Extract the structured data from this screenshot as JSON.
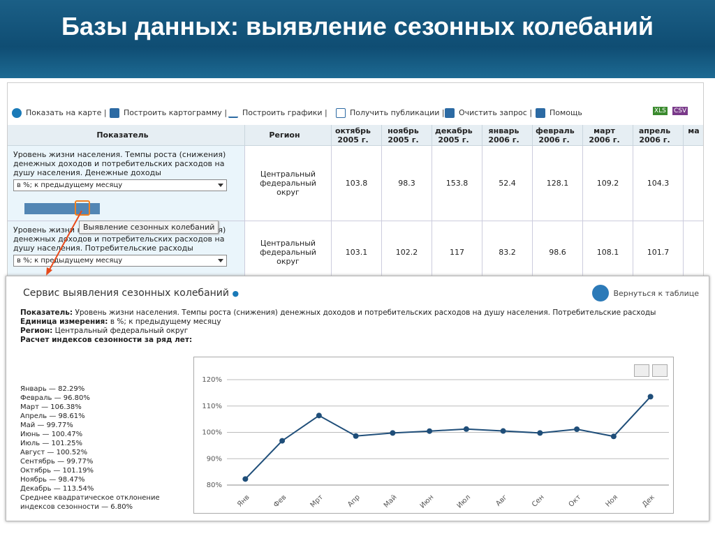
{
  "header": {
    "title": "Базы данных: выявление сезонных колебаний"
  },
  "toolbar": {
    "items": [
      "Показать на карте",
      "Построить картограмму",
      "Построить графики",
      "Получить публикации",
      "Очистить запрос",
      "Помощь"
    ],
    "exports": [
      "XLS",
      "CSV"
    ]
  },
  "table": {
    "headers": [
      "Показатель",
      "Регион",
      "октябрь 2005 г.",
      "ноябрь 2005 г.",
      "декабрь 2005 г.",
      "январь 2006 г.",
      "февраль 2006 г.",
      "март 2006 г.",
      "апрель 2006 г.",
      "ма"
    ],
    "rows": [
      {
        "indicator": "Уровень жизни населения. Темпы роста (снижения) денежных доходов и потребительских расходов на душу населения. Денежные доходы",
        "unit": "в %; к предыдущему месяцу",
        "region": "Центральный федеральный округ",
        "values": [
          103.8,
          98.3,
          153.8,
          52.4,
          128.1,
          109.2,
          104.3
        ]
      },
      {
        "indicator": "Уровень жизни населения. Темпы роста (снижения) денежных доходов и потребительских расходов на душу населения. Потребительские расходы",
        "unit": "в %; к предыдущему месяцу",
        "region": "Центральный федеральный округ",
        "values": [
          103.1,
          102.2,
          117,
          83.2,
          98.6,
          108.1,
          101.7
        ]
      }
    ]
  },
  "tooltip": "Выявление сезонных колебаний",
  "panel": {
    "title": "Сервис выявления сезонных колебаний",
    "back": "Вернуться к таблице",
    "info": [
      {
        "label": "Показатель:",
        "text": "Уровень жизни населения. Темпы роста (снижения) денежных доходов и потребительских расходов на душу населения. Потребительские расходы"
      },
      {
        "label": "Единица измерения:",
        "text": "в %; к предыдущему месяцу"
      },
      {
        "label": "Регион:",
        "text": "Центральный федеральный округ"
      },
      {
        "label": "Расчет индексов сезонности за ряд лет:",
        "text": null
      }
    ],
    "indices": [
      "Январь — 82.29%",
      "Февраль — 96.80%",
      "Март — 106.38%",
      "Апрель — 98.61%",
      "Май — 99.77%",
      "Июнь — 100.47%",
      "Июль — 101.25%",
      "Август — 100.52%",
      "Сентябрь — 99.77%",
      "Октябрь — 101.19%",
      "Ноябрь — 98.47%",
      "Декабрь — 113.54%"
    ],
    "deviation": "Среднее квадратическое отклонение индексов сезонности — 6.80%"
  },
  "chart_data": {
    "type": "line",
    "categories": [
      "Янв",
      "Фев",
      "Мрт",
      "Апр",
      "Май",
      "Июн",
      "Июл",
      "Авг",
      "Сен",
      "Окт",
      "Ноя",
      "Дек"
    ],
    "values": [
      82.29,
      96.8,
      106.38,
      98.61,
      99.77,
      100.47,
      101.25,
      100.52,
      99.77,
      101.19,
      98.47,
      113.54
    ],
    "color": "#1f4e79",
    "ylim": [
      80,
      120
    ],
    "yticks": [
      {
        "value": 80,
        "label": "80%"
      },
      {
        "value": 90,
        "label": "90%"
      },
      {
        "value": 100,
        "label": "100%"
      },
      {
        "value": 110,
        "label": "110%"
      },
      {
        "value": 120,
        "label": "120%"
      }
    ],
    "grid": true
  }
}
